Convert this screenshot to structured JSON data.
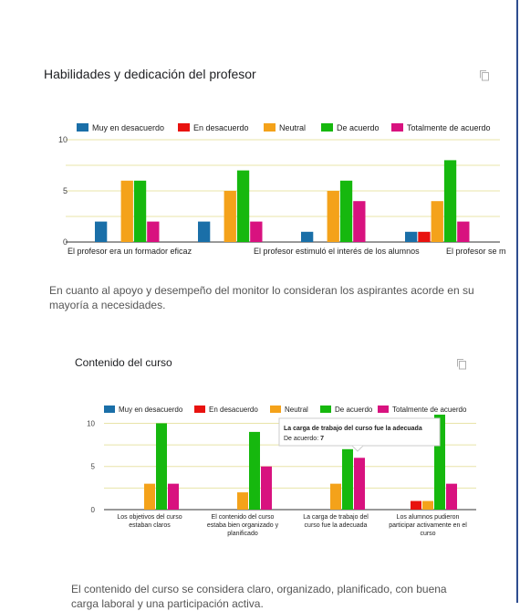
{
  "sections": [
    {
      "title": "Habilidades y dedicación del profesor",
      "paragraph_lines": [
        "En cuanto al apoyo y desempeño del monitor lo consideran los aspirantes acorde en su",
        "mayoría a necesidades."
      ]
    },
    {
      "title": "Contenido del curso",
      "paragraph_lines": [
        "El contenido del curso se considera claro, organizado, planificado, con buena",
        "carga laboral y una participación activa."
      ],
      "tooltip": {
        "category": "La carga de trabajo del curso fue la adecuada",
        "series": "De acuerdo",
        "value": "7"
      }
    }
  ],
  "icons": [
    "copy-icon",
    "copy-icon"
  ],
  "colors": {
    "Muy en desacuerdo": "#1a6fa8",
    "En desacuerdo": "#e8120f",
    "Neutral": "#f4a21a",
    "De acuerdo": "#16b80e",
    "Totalmente de acuerdo": "#d8127f",
    "grid": "#e8e4a8",
    "page_rule": "#2e4d8f"
  },
  "chart_data": [
    {
      "type": "bar",
      "ylim": [
        0,
        10
      ],
      "yticks": [
        0,
        5,
        10
      ],
      "grid": true,
      "legend_placement": "top",
      "category_labels_shown": [
        "El profesor era un formador eficaz",
        "El profesor estimuló el interés de los alumnos",
        "El profesor se m"
      ],
      "series": [
        {
          "name": "Muy en desacuerdo",
          "values": [
            2,
            2,
            1,
            1
          ]
        },
        {
          "name": "En desacuerdo",
          "values": [
            0,
            0,
            0,
            1
          ]
        },
        {
          "name": "Neutral",
          "values": [
            6,
            5,
            5,
            4
          ]
        },
        {
          "name": "De acuerdo",
          "values": [
            6,
            7,
            6,
            8
          ]
        },
        {
          "name": "Totalmente de acuerdo",
          "values": [
            2,
            2,
            4,
            2
          ]
        }
      ]
    },
    {
      "type": "bar",
      "ylim": [
        0,
        11
      ],
      "yticks": [
        0,
        5,
        10
      ],
      "grid": true,
      "legend_placement": "top",
      "categories": [
        "Los objetivos del curso estaban claros",
        "El contenido del curso estaba bien organizado y planificado",
        "La carga de trabajo del curso fue la adecuada",
        "Los alumnos pudieron participar activamente en el curso"
      ],
      "category_label_lines": [
        [
          "Los objetivos del curso",
          "estaban claros"
        ],
        [
          "El contenido del curso",
          "estaba bien organizado y",
          "planificado"
        ],
        [
          "La carga de trabajo del",
          "curso fue la adecuada"
        ],
        [
          "Los alumnos pudieron",
          "participar activamente en el",
          "curso"
        ]
      ],
      "series": [
        {
          "name": "Muy en desacuerdo",
          "values": [
            0,
            0,
            0,
            0
          ]
        },
        {
          "name": "En desacuerdo",
          "values": [
            0,
            0,
            0,
            1
          ]
        },
        {
          "name": "Neutral",
          "values": [
            3,
            2,
            3,
            1
          ]
        },
        {
          "name": "De acuerdo",
          "values": [
            10,
            9,
            7,
            11
          ]
        },
        {
          "name": "Totalmente de acuerdo",
          "values": [
            3,
            5,
            6,
            3
          ]
        }
      ]
    }
  ]
}
